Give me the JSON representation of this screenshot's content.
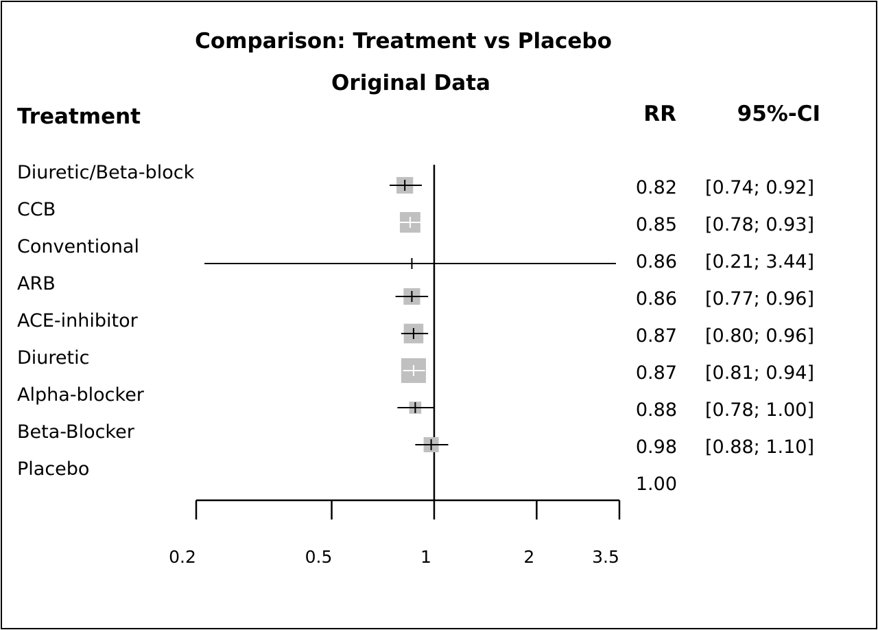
{
  "chart_data": {
    "type": "forest",
    "title": "Comparison: Treatment vs Placebo",
    "subtitle": "Original Data",
    "column_headers": {
      "label": "Treatment",
      "estimate": "RR",
      "ci": "95%-CI"
    },
    "x_scale": "log",
    "x_range": [
      0.2,
      3.5
    ],
    "x_ticks": [
      {
        "value": 0.2,
        "label": "0.2"
      },
      {
        "value": 0.5,
        "label": "0.5"
      },
      {
        "value": 1,
        "label": "1"
      },
      {
        "value": 2,
        "label": "2"
      },
      {
        "value": 3.5,
        "label": "3.5"
      }
    ],
    "reference_value": 1,
    "box_color": "#c0c0c0",
    "rows": [
      {
        "label": "Diuretic/Beta-block",
        "rr": 0.82,
        "lower": 0.74,
        "upper": 0.92,
        "rr_text": "0.82",
        "ci_text": "[0.74; 0.92]",
        "weight": 0.55
      },
      {
        "label": "CCB",
        "rr": 0.85,
        "lower": 0.78,
        "upper": 0.93,
        "rr_text": "0.85",
        "ci_text": "[0.78; 0.93]",
        "weight": 0.68
      },
      {
        "label": "Conventional",
        "rr": 0.86,
        "lower": 0.21,
        "upper": 3.44,
        "rr_text": "0.86",
        "ci_text": "[0.21; 3.44]",
        "weight": 0.0
      },
      {
        "label": "ARB",
        "rr": 0.86,
        "lower": 0.77,
        "upper": 0.96,
        "rr_text": "0.86",
        "ci_text": "[0.77; 0.96]",
        "weight": 0.55
      },
      {
        "label": "ACE-inhibitor",
        "rr": 0.87,
        "lower": 0.8,
        "upper": 0.96,
        "rr_text": "0.87",
        "ci_text": "[0.80; 0.96]",
        "weight": 0.65
      },
      {
        "label": "Diuretic",
        "rr": 0.87,
        "lower": 0.81,
        "upper": 0.94,
        "rr_text": "0.87",
        "ci_text": "[0.81; 0.94]",
        "weight": 0.82
      },
      {
        "label": "Alpha-blocker",
        "rr": 0.88,
        "lower": 0.78,
        "upper": 1.0,
        "rr_text": "0.88",
        "ci_text": "[0.78; 1.00]",
        "weight": 0.4
      },
      {
        "label": "Beta-Blocker",
        "rr": 0.98,
        "lower": 0.88,
        "upper": 1.1,
        "rr_text": "0.98",
        "ci_text": "[0.88; 1.10]",
        "weight": 0.5
      },
      {
        "label": "Placebo",
        "rr": 1.0,
        "lower": null,
        "upper": null,
        "rr_text": "1.00",
        "ci_text": "",
        "weight": 0
      }
    ]
  }
}
